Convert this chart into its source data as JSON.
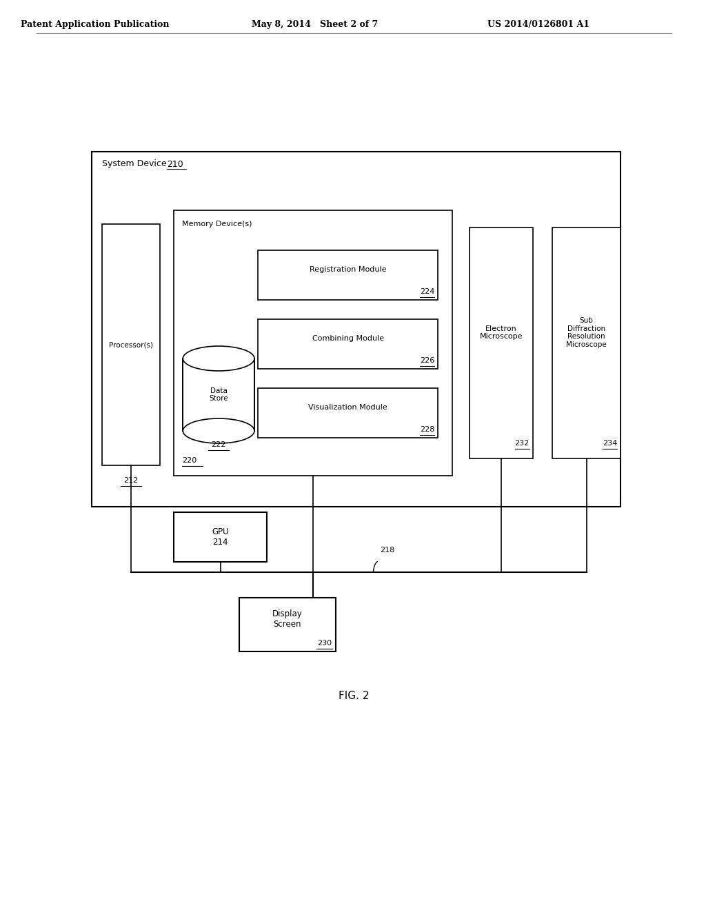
{
  "bg_color": "#ffffff",
  "text_color": "#000000",
  "header_left": "Patent Application Publication",
  "header_mid": "May 8, 2014   Sheet 2 of 7",
  "header_right": "US 2014/0126801 A1",
  "fig_label": "FIG. 2",
  "system_device_label": "System Device",
  "system_device_num": "210",
  "processor_label": "Processor(s)",
  "processor_num": "212",
  "memory_device_label": "Memory Device(s)",
  "memory_device_num": "220",
  "data_store_label": "Data\nStore",
  "data_store_num": "222",
  "reg_module_label": "Registration Module",
  "reg_module_num": "224",
  "comb_module_label": "Combining Module",
  "comb_module_num": "226",
  "vis_module_label": "Visualization Module",
  "vis_module_num": "228",
  "electron_label": "Electron\nMicroscope",
  "electron_num": "232",
  "sub_diff_label": "Sub\nDiffraction\nResolution\nMicroscope",
  "sub_diff_num": "234",
  "gpu_label": "GPU\n214",
  "display_label": "Display\nScreen",
  "display_num": "230",
  "bus_num": "218"
}
